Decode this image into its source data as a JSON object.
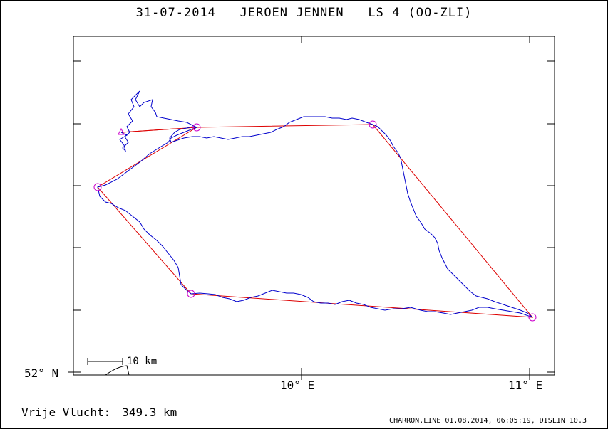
{
  "title": "31-07-2014   JEROEN JENNEN   LS 4 (OO-ZLI)",
  "axes": {
    "lat_label": "52° N",
    "lon_labels": [
      "10° E",
      "11° E"
    ]
  },
  "scale_bar": {
    "label": "10 km"
  },
  "distance": {
    "label": "Vrije Vlucht:",
    "value": "349.3 km"
  },
  "footer": "CHARRON.LINE 01.08.2014, 06:05:19, DISLIN 10.3",
  "colors": {
    "track": "#0000cc",
    "task_line": "#dd0000",
    "turnpoint": "#cc00cc",
    "frame": "#000000"
  }
}
